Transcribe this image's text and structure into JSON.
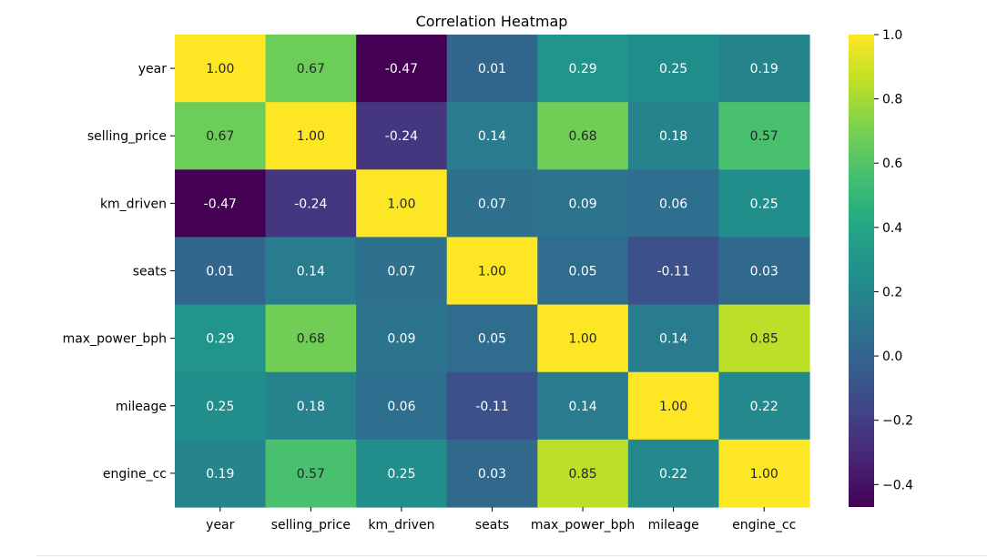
{
  "chart_data": {
    "type": "heatmap",
    "title": "Correlation Heatmap",
    "xlabel": "",
    "ylabel": "",
    "rows": [
      "year",
      "selling_price",
      "km_driven",
      "seats",
      "max_power_bph",
      "mileage",
      "engine_cc"
    ],
    "columns": [
      "year",
      "selling_price",
      "km_driven",
      "seats",
      "max_power_bph",
      "mileage",
      "engine_cc"
    ],
    "values": [
      [
        1.0,
        0.67,
        -0.47,
        0.01,
        0.29,
        0.25,
        0.19
      ],
      [
        0.67,
        1.0,
        -0.24,
        0.14,
        0.68,
        0.18,
        0.57
      ],
      [
        -0.47,
        -0.24,
        1.0,
        0.07,
        0.09,
        0.06,
        0.25
      ],
      [
        0.01,
        0.14,
        0.07,
        1.0,
        0.05,
        -0.11,
        0.03
      ],
      [
        0.29,
        0.68,
        0.09,
        0.05,
        1.0,
        0.14,
        0.85
      ],
      [
        0.25,
        0.18,
        0.06,
        -0.11,
        0.14,
        1.0,
        0.22
      ],
      [
        0.19,
        0.57,
        0.25,
        0.03,
        0.85,
        0.22,
        1.0
      ]
    ],
    "value_format": "0.00",
    "colormap": "viridis",
    "vmin": -0.47,
    "vmax": 1.0,
    "colorbar": {
      "ticks": [
        1.0,
        0.8,
        0.6,
        0.4,
        0.2,
        0.0,
        -0.2,
        -0.4
      ],
      "tick_labels": [
        "1.0",
        "0.8",
        "0.6",
        "0.4",
        "0.2",
        "0.0",
        "−0.2",
        "−0.4"
      ],
      "placement": "right"
    },
    "grid": false
  }
}
